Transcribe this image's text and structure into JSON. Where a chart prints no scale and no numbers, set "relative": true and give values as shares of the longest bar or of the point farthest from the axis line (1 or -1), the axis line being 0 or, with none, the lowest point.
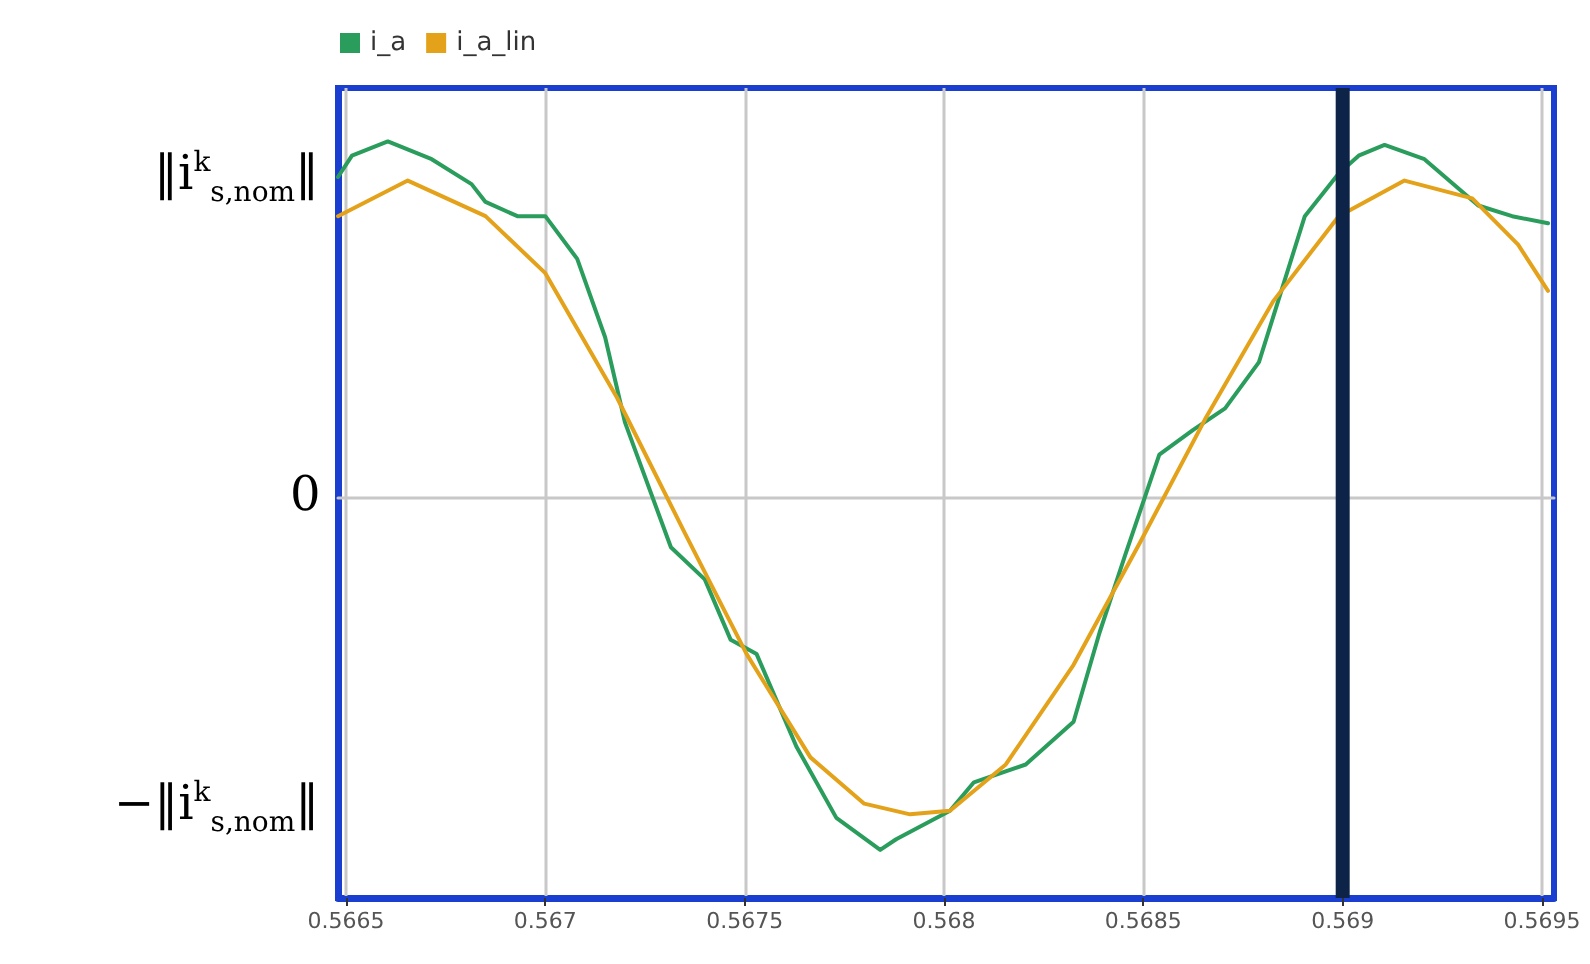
{
  "chart_data": {
    "type": "line",
    "relative": true,
    "xlim": [
      0.56648,
      0.56953
    ],
    "xticks": [
      0.5665,
      0.567,
      0.5675,
      0.568,
      0.5685,
      0.569,
      0.5695
    ],
    "annotations": [
      "‖i$^{k}$$_{s,nom}$‖",
      "0",
      "−‖i$^{k}$$_{s,nom}$‖"
    ],
    "grid": true,
    "legend": "top left",
    "marker": "none",
    "line_style": "solid",
    "ref_lines": [
      {
        "axis": "x",
        "value": 0.569,
        "label": null,
        "color": "#0d2347"
      }
    ],
    "series": [
      {
        "name": "i_a",
        "color": "#2a9d5c",
        "x": [
          0.56648,
          0.566515,
          0.566605,
          0.566715,
          0.566815,
          0.56685,
          0.56693,
          0.567,
          0.56708,
          0.56715,
          0.5672,
          0.567315,
          0.5674,
          0.567465,
          0.56753,
          0.56763,
          0.56773,
          0.56784,
          0.56788,
          0.568015,
          0.568075,
          0.568205,
          0.568325,
          0.56839,
          0.568455,
          0.56854,
          0.568625,
          0.568705,
          0.56879,
          0.568905,
          0.56899,
          0.56904,
          0.569105,
          0.569205,
          0.56934,
          0.569425,
          0.569515
        ],
        "values": [
          0.9,
          0.96,
          1.0,
          0.95,
          0.88,
          0.83,
          0.79,
          0.79,
          0.67,
          0.45,
          0.21,
          -0.14,
          -0.23,
          -0.4,
          -0.44,
          -0.7,
          -0.9,
          -0.99,
          -0.96,
          -0.88,
          -0.8,
          -0.75,
          -0.63,
          -0.38,
          -0.16,
          0.12,
          0.19,
          0.25,
          0.38,
          0.79,
          0.91,
          0.96,
          0.99,
          0.95,
          0.82,
          0.79,
          0.77
        ]
      },
      {
        "name": "i_a_lin",
        "color": "#e3a21a",
        "x": [
          0.56648,
          0.566655,
          0.56685,
          0.567,
          0.56718,
          0.56735,
          0.567505,
          0.567665,
          0.5678,
          0.567915,
          0.568015,
          0.568155,
          0.568325,
          0.56849,
          0.568655,
          0.568825,
          0.56899,
          0.569155,
          0.569325,
          0.56944,
          0.569515
        ],
        "values": [
          0.79,
          0.89,
          0.79,
          0.63,
          0.28,
          -0.1,
          -0.44,
          -0.73,
          -0.86,
          -0.89,
          -0.88,
          -0.75,
          -0.47,
          -0.13,
          0.22,
          0.55,
          0.79,
          0.89,
          0.84,
          0.71,
          0.58
        ]
      }
    ]
  }
}
